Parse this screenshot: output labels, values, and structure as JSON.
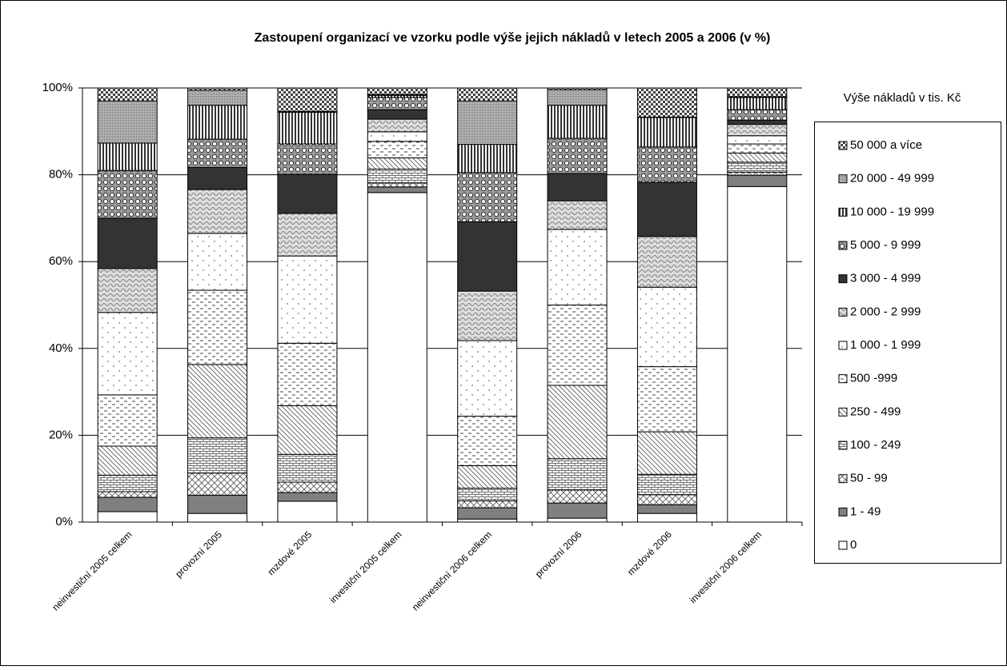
{
  "chart_data": {
    "type": "stacked_bar_100",
    "title": "Zastoupení organizací ve vzorku podle výše jejich nákladů v letech 2005 a 2006 (v %)",
    "legend_title": "Výše nákladů v tis. Kč",
    "legend_position": "right",
    "grid": true,
    "ylim": [
      0,
      100
    ],
    "yticks": [
      {
        "value": 0,
        "label": "0%"
      },
      {
        "value": 20,
        "label": "20%"
      },
      {
        "value": 40,
        "label": "40%"
      },
      {
        "value": 60,
        "label": "60%"
      },
      {
        "value": 80,
        "label": "80%"
      },
      {
        "value": 100,
        "label": "100%"
      }
    ],
    "categories": [
      "neinvestiční 2005 celkem",
      "provozní 2005",
      "mzdové 2005",
      "investiční 2005 celkem",
      "neinvestiční 2006 celkem",
      "provozní 2006",
      "mzdové 2006",
      "investiční 2006 celkem"
    ],
    "series": [
      {
        "name": "0",
        "pattern": "p-white",
        "values": [
          2.4,
          2.0,
          4.8,
          75.9,
          0.7,
          0.9,
          2.0,
          77.3
        ]
      },
      {
        "name": "1 - 49",
        "pattern": "p-gray",
        "values": [
          3.3,
          4.2,
          2.0,
          1.3,
          2.6,
          3.5,
          2.0,
          2.6
        ]
      },
      {
        "name": "50 - 99",
        "pattern": "p-cross",
        "values": [
          1.3,
          5.1,
          2.4,
          0.9,
          1.6,
          3.0,
          2.3,
          0.7
        ]
      },
      {
        "name": "100 - 249",
        "pattern": "p-brick",
        "values": [
          3.8,
          8.1,
          6.4,
          3.2,
          2.9,
          7.2,
          4.7,
          2.3
        ]
      },
      {
        "name": "250 - 499",
        "pattern": "p-diag",
        "values": [
          6.7,
          16.9,
          11.2,
          2.6,
          5.2,
          16.9,
          9.8,
          2.1
        ]
      },
      {
        "name": "500 -999",
        "pattern": "p-dash",
        "values": [
          11.8,
          17.1,
          14.4,
          3.8,
          11.4,
          18.5,
          15.0,
          2.1
        ]
      },
      {
        "name": "1 000 - 1 999",
        "pattern": "p-dots",
        "values": [
          19.0,
          13.1,
          20.1,
          2.2,
          17.4,
          17.4,
          18.3,
          1.9
        ]
      },
      {
        "name": "2 000 - 2 999",
        "pattern": "p-wave",
        "values": [
          10.1,
          10.1,
          9.8,
          2.9,
          11.4,
          6.6,
          11.7,
          2.6
        ]
      },
      {
        "name": "3 000 - 4 999",
        "pattern": "p-dark",
        "values": [
          11.6,
          5.1,
          9.0,
          2.2,
          16.0,
          6.3,
          12.5,
          1.0
        ]
      },
      {
        "name": "5 000 - 9 999",
        "pattern": "p-circ",
        "values": [
          11.0,
          6.5,
          7.0,
          2.8,
          11.3,
          8.1,
          8.1,
          2.4
        ]
      },
      {
        "name": "10 000 - 19 999",
        "pattern": "p-vert",
        "values": [
          6.3,
          7.8,
          7.3,
          0.5,
          6.5,
          7.6,
          6.8,
          2.8
        ]
      },
      {
        "name": "20 000 - 49 999",
        "pattern": "p-fine",
        "values": [
          9.7,
          3.5,
          0.2,
          0.2,
          10.0,
          3.6,
          0.1,
          0.2
        ]
      },
      {
        "name": "50 000 a více",
        "pattern": "p-check",
        "values": [
          3.0,
          0.5,
          5.4,
          1.5,
          3.0,
          0.4,
          6.7,
          2.0
        ]
      }
    ]
  }
}
